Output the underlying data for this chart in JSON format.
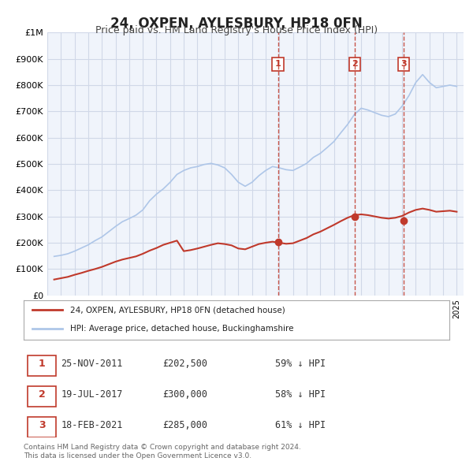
{
  "title": "24, OXPEN, AYLESBURY, HP18 0FN",
  "subtitle": "Price paid vs. HM Land Registry's House Price Index (HPI)",
  "xlabel": "",
  "ylabel": "",
  "ylim": [
    0,
    1000000
  ],
  "xlim_start": 1995.0,
  "xlim_end": 2025.5,
  "yticks": [
    0,
    100000,
    200000,
    300000,
    400000,
    500000,
    600000,
    700000,
    800000,
    900000,
    1000000
  ],
  "ytick_labels": [
    "£0",
    "£100K",
    "£200K",
    "£300K",
    "£400K",
    "£500K",
    "£600K",
    "£700K",
    "£800K",
    "£900K",
    "£1M"
  ],
  "hpi_color": "#aec6e8",
  "price_color": "#c0392b",
  "grid_color": "#d0d8e8",
  "background_color": "#ffffff",
  "plot_bg_color": "#f0f4fb",
  "transaction_dates": [
    2011.9,
    2017.54,
    2021.12
  ],
  "transaction_prices": [
    202500,
    300000,
    285000
  ],
  "transaction_labels": [
    "1",
    "2",
    "3"
  ],
  "transaction_date_strs": [
    "25-NOV-2011",
    "19-JUL-2017",
    "18-FEB-2021"
  ],
  "transaction_price_strs": [
    "£202,500",
    "£300,000",
    "£285,000"
  ],
  "transaction_pct_strs": [
    "59% ↓ HPI",
    "58% ↓ HPI",
    "61% ↓ HPI"
  ],
  "legend_line1": "24, OXPEN, AYLESBURY, HP18 0FN (detached house)",
  "legend_line2": "HPI: Average price, detached house, Buckinghamshire",
  "footer": "Contains HM Land Registry data © Crown copyright and database right 2024.\nThis data is licensed under the Open Government Licence v3.0.",
  "hpi_data": {
    "years": [
      1995.5,
      1996.0,
      1996.5,
      1997.0,
      1997.5,
      1998.0,
      1998.5,
      1999.0,
      1999.5,
      2000.0,
      2000.5,
      2001.0,
      2001.5,
      2002.0,
      2002.5,
      2003.0,
      2003.5,
      2004.0,
      2004.5,
      2005.0,
      2005.5,
      2006.0,
      2006.5,
      2007.0,
      2007.5,
      2008.0,
      2008.5,
      2009.0,
      2009.5,
      2010.0,
      2010.5,
      2011.0,
      2011.5,
      2012.0,
      2012.5,
      2013.0,
      2013.5,
      2014.0,
      2014.5,
      2015.0,
      2015.5,
      2016.0,
      2016.5,
      2017.0,
      2017.5,
      2018.0,
      2018.5,
      2019.0,
      2019.5,
      2020.0,
      2020.5,
      2021.0,
      2021.5,
      2022.0,
      2022.5,
      2023.0,
      2023.5,
      2024.0,
      2024.5,
      2025.0
    ],
    "values": [
      148000,
      152000,
      158000,
      168000,
      180000,
      192000,
      208000,
      222000,
      242000,
      262000,
      280000,
      292000,
      305000,
      325000,
      360000,
      385000,
      405000,
      430000,
      460000,
      475000,
      485000,
      490000,
      498000,
      502000,
      496000,
      485000,
      460000,
      430000,
      415000,
      430000,
      455000,
      475000,
      490000,
      485000,
      478000,
      475000,
      488000,
      502000,
      525000,
      540000,
      562000,
      585000,
      618000,
      650000,
      688000,
      712000,
      705000,
      695000,
      685000,
      680000,
      690000,
      720000,
      760000,
      810000,
      840000,
      810000,
      790000,
      795000,
      800000,
      795000
    ]
  },
  "price_data": {
    "years": [
      1995.5,
      1996.0,
      1996.5,
      1997.0,
      1997.5,
      1998.0,
      1998.5,
      1999.0,
      1999.5,
      2000.0,
      2000.5,
      2001.0,
      2001.5,
      2002.0,
      2002.5,
      2003.0,
      2003.5,
      2004.0,
      2004.5,
      2005.0,
      2005.5,
      2006.0,
      2006.5,
      2007.0,
      2007.5,
      2008.0,
      2008.5,
      2009.0,
      2009.5,
      2010.0,
      2010.5,
      2011.0,
      2011.5,
      2012.0,
      2012.5,
      2013.0,
      2013.5,
      2014.0,
      2014.5,
      2015.0,
      2015.5,
      2016.0,
      2016.5,
      2017.0,
      2017.5,
      2018.0,
      2018.5,
      2019.0,
      2019.5,
      2020.0,
      2020.5,
      2021.0,
      2021.5,
      2022.0,
      2022.5,
      2023.0,
      2023.5,
      2024.0,
      2024.5,
      2025.0
    ],
    "values": [
      60000,
      65000,
      70000,
      78000,
      85000,
      93000,
      100000,
      108000,
      118000,
      128000,
      136000,
      142000,
      148000,
      158000,
      170000,
      180000,
      192000,
      200000,
      208000,
      168000,
      172000,
      178000,
      185000,
      192000,
      198000,
      195000,
      190000,
      178000,
      175000,
      185000,
      195000,
      200000,
      204000,
      200000,
      196000,
      198000,
      208000,
      218000,
      232000,
      242000,
      255000,
      268000,
      282000,
      295000,
      305000,
      308000,
      305000,
      300000,
      295000,
      292000,
      295000,
      302000,
      315000,
      325000,
      330000,
      325000,
      318000,
      320000,
      322000,
      318000
    ]
  }
}
